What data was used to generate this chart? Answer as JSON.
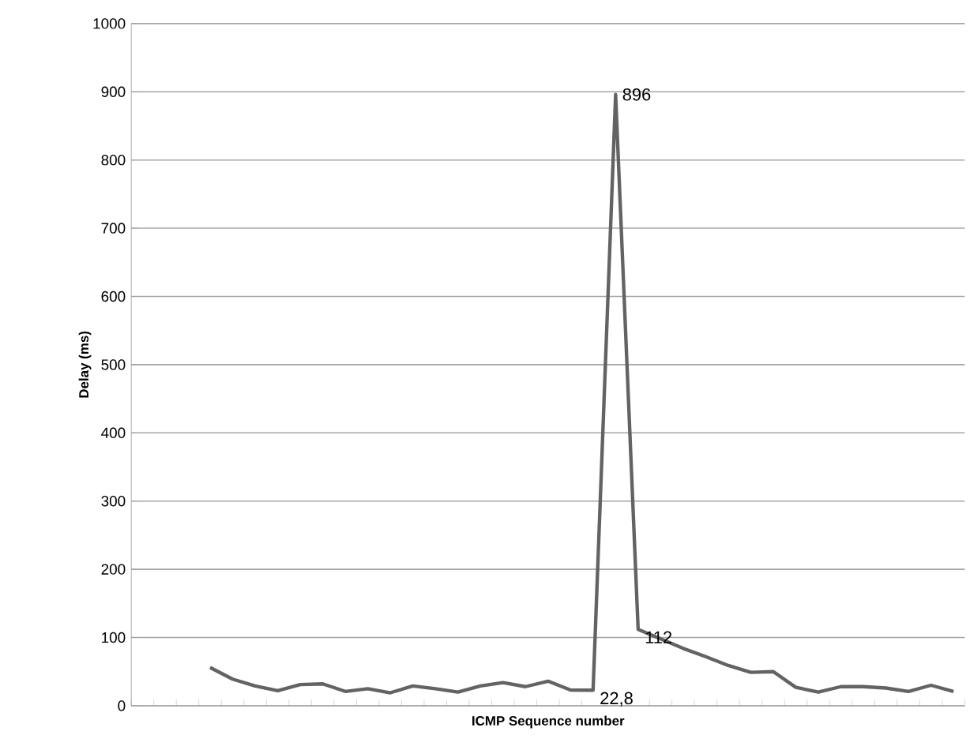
{
  "chart_data": {
    "type": "line",
    "xlabel": "ICMP Sequence number",
    "ylabel": "Delay (ms)",
    "categories": [
      null,
      null,
      null,
      null,
      null,
      null,
      null,
      null,
      null,
      null,
      null,
      null,
      null,
      null,
      null,
      null,
      null,
      null,
      null,
      null,
      null,
      null,
      null,
      null,
      null,
      null,
      null,
      null,
      null,
      null,
      null,
      null,
      null,
      null,
      null,
      null,
      null
    ],
    "values": [
      null,
      null,
      null,
      56,
      39,
      29,
      22,
      31,
      32,
      21,
      25,
      19,
      29,
      25,
      20,
      29,
      34,
      28,
      36,
      23,
      22.8,
      896,
      112,
      98,
      84,
      72,
      59,
      49,
      50,
      27,
      20,
      28,
      28,
      26,
      21,
      30,
      21
    ],
    "value_labels": [
      null,
      null,
      null,
      null,
      null,
      null,
      null,
      null,
      null,
      null,
      null,
      null,
      null,
      null,
      null,
      null,
      null,
      null,
      null,
      null,
      "22,8",
      "896",
      "112",
      null,
      null,
      null,
      null,
      null,
      null,
      null,
      null,
      null,
      null,
      null,
      null,
      null,
      null
    ],
    "color": "#636363",
    "ylim": [
      0,
      1000
    ],
    "yticks": [
      0,
      100,
      200,
      300,
      400,
      500,
      600,
      700,
      800,
      900,
      1000
    ],
    "grid": "y",
    "marker": "none",
    "line_style": "solid"
  }
}
